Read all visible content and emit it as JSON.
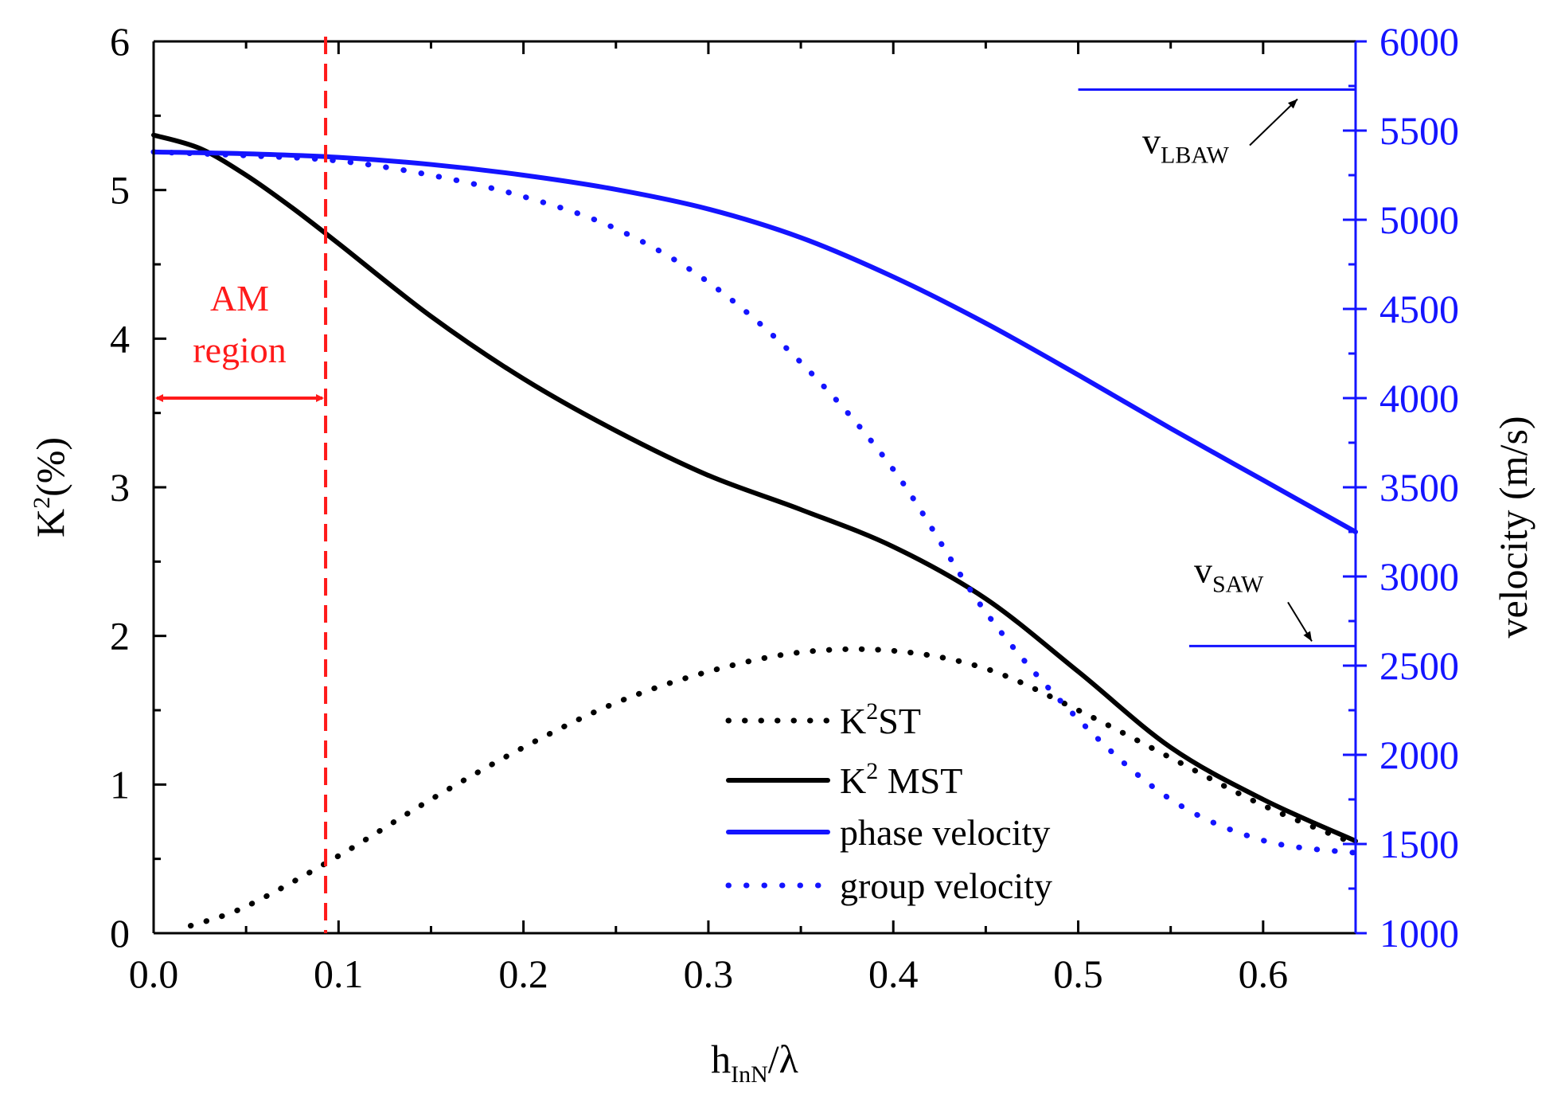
{
  "chart_data": {
    "type": "line",
    "colors": {
      "axis": "#000000",
      "right_axis": "#1414ff",
      "k2st": "#000000",
      "k2mst": "#000000",
      "phase": "#1414ff",
      "group": "#1414ff",
      "am": "#ff1a1a"
    },
    "x_axis": {
      "label_main": "h",
      "label_sub": "InN",
      "label_tail": "/λ",
      "range": [
        0,
        0.65
      ],
      "ticks": [
        0.0,
        0.1,
        0.2,
        0.3,
        0.4,
        0.5,
        0.6
      ],
      "tick_labels": [
        "0.0",
        "0.1",
        "0.2",
        "0.3",
        "0.4",
        "0.5",
        "0.6"
      ]
    },
    "y_left": {
      "label_main": "K",
      "label_sup": "2",
      "label_tail": "(%)",
      "range": [
        0,
        6
      ],
      "ticks": [
        0,
        1,
        2,
        3,
        4,
        5,
        6
      ],
      "tick_labels": [
        "0",
        "1",
        "2",
        "3",
        "4",
        "5",
        "6"
      ]
    },
    "y_right": {
      "label": "velocity (m/s)",
      "range": [
        1000,
        6000
      ],
      "ticks": [
        1000,
        1500,
        2000,
        2500,
        3000,
        3500,
        4000,
        4500,
        5000,
        5500,
        6000
      ],
      "tick_labels": [
        "1000",
        "1500",
        "2000",
        "2500",
        "3000",
        "3500",
        "4000",
        "4500",
        "5000",
        "5500",
        "6000"
      ]
    },
    "series": [
      {
        "name": "K2ST",
        "axis": "left",
        "style": "dotted",
        "x": [
          0.02,
          0.05,
          0.1,
          0.15,
          0.2,
          0.25,
          0.3,
          0.35,
          0.4,
          0.45,
          0.5,
          0.55,
          0.6,
          0.65
        ],
        "values": [
          0.05,
          0.18,
          0.52,
          0.9,
          1.25,
          1.55,
          1.76,
          1.89,
          1.9,
          1.78,
          1.5,
          1.18,
          0.86,
          0.6
        ]
      },
      {
        "name": "K2 MST",
        "axis": "left",
        "style": "solid",
        "x": [
          0.0,
          0.025,
          0.05,
          0.075,
          0.1,
          0.15,
          0.2,
          0.25,
          0.3,
          0.35,
          0.4,
          0.45,
          0.5,
          0.55,
          0.6,
          0.65
        ],
        "values": [
          5.37,
          5.28,
          5.1,
          4.88,
          4.64,
          4.15,
          3.73,
          3.38,
          3.08,
          2.85,
          2.6,
          2.25,
          1.76,
          1.25,
          0.9,
          0.62
        ]
      },
      {
        "name": "phase velocity",
        "axis": "right",
        "style": "solid",
        "x": [
          0.0,
          0.05,
          0.1,
          0.15,
          0.2,
          0.25,
          0.3,
          0.35,
          0.4,
          0.45,
          0.5,
          0.55,
          0.6,
          0.65
        ],
        "values": [
          5380,
          5370,
          5350,
          5310,
          5250,
          5170,
          5060,
          4900,
          4680,
          4420,
          4130,
          3830,
          3540,
          3250
        ]
      },
      {
        "name": "group velocity",
        "axis": "right",
        "style": "dotted",
        "x": [
          0.0,
          0.05,
          0.1,
          0.15,
          0.2,
          0.25,
          0.3,
          0.35,
          0.4,
          0.45,
          0.5,
          0.55,
          0.6,
          0.65
        ],
        "values": [
          5380,
          5360,
          5330,
          5250,
          5130,
          4950,
          4650,
          4200,
          3600,
          2800,
          2200,
          1750,
          1520,
          1450
        ]
      }
    ],
    "legend": {
      "placement": "bottom-center",
      "entries": [
        {
          "main": "K",
          "sup": "2",
          "tail": "ST",
          "series": "K2ST"
        },
        {
          "main": "K",
          "sup": "2",
          "tail": " MST",
          "series": "K2 MST"
        },
        {
          "main": "phase velocity",
          "sup": "",
          "tail": "",
          "series": "phase velocity"
        },
        {
          "main": "group velocity",
          "sup": "",
          "tail": "",
          "series": "group velocity"
        }
      ]
    },
    "reference_lines": [
      {
        "name": "v_LBAW",
        "label_main": "v",
        "label_sub": "LBAW",
        "axis": "right",
        "value": 5730,
        "x_start": 0.5
      },
      {
        "name": "v_SAW",
        "label_main": "v",
        "label_sub": "SAW",
        "axis": "right",
        "value": 2610,
        "x_start": 0.56
      }
    ],
    "am_region": {
      "line1": "AM",
      "line2": "region",
      "x_boundary": 0.093,
      "arrow_y": 3.6
    }
  }
}
